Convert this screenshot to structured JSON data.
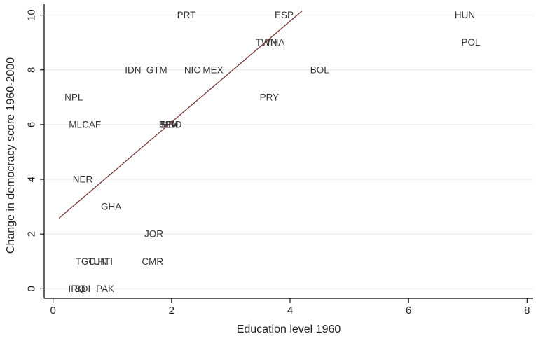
{
  "chart_data": {
    "type": "scatter",
    "xlabel": "Education level 1960",
    "ylabel": "Change in democracy score 1960-2000",
    "xlim": [
      -0.15,
      8.15
    ],
    "ylim": [
      -0.35,
      10.4
    ],
    "xticks": [
      0,
      2,
      4,
      6,
      8
    ],
    "yticks": [
      0,
      2,
      4,
      6,
      8,
      10
    ],
    "grid": "horizontal",
    "points": [
      {
        "label": "PRT",
        "x": 2.25,
        "y": 10
      },
      {
        "label": "ESP",
        "x": 3.9,
        "y": 10
      },
      {
        "label": "HUN",
        "x": 6.95,
        "y": 10
      },
      {
        "label": "TWN",
        "x": 3.6,
        "y": 9
      },
      {
        "label": "THA",
        "x": 3.75,
        "y": 9
      },
      {
        "label": "POL",
        "x": 7.05,
        "y": 9
      },
      {
        "label": "IDN",
        "x": 1.35,
        "y": 8
      },
      {
        "label": "GTM",
        "x": 1.75,
        "y": 8
      },
      {
        "label": "NIC",
        "x": 2.35,
        "y": 8
      },
      {
        "label": "MEX",
        "x": 2.7,
        "y": 8
      },
      {
        "label": "BOL",
        "x": 4.5,
        "y": 8
      },
      {
        "label": "NPL",
        "x": 0.35,
        "y": 7
      },
      {
        "label": "PRY",
        "x": 3.65,
        "y": 7
      },
      {
        "label": "MLI",
        "x": 0.4,
        "y": 6
      },
      {
        "label": "CAF",
        "x": 0.65,
        "y": 6
      },
      {
        "label": "BEN",
        "x": 1.95,
        "y": 6
      },
      {
        "label": "SLV",
        "x": 1.95,
        "y": 6
      },
      {
        "label": "HND",
        "x": 2.0,
        "y": 6
      },
      {
        "label": "NER",
        "x": 0.5,
        "y": 4
      },
      {
        "label": "GHA",
        "x": 0.98,
        "y": 3
      },
      {
        "label": "JOR",
        "x": 1.7,
        "y": 2
      },
      {
        "label": "TGO",
        "x": 0.55,
        "y": 1
      },
      {
        "label": "TUN",
        "x": 0.75,
        "y": 1
      },
      {
        "label": "HTI",
        "x": 0.88,
        "y": 1
      },
      {
        "label": "CMR",
        "x": 1.68,
        "y": 1
      },
      {
        "label": "IRQ",
        "x": 0.4,
        "y": 0
      },
      {
        "label": "BDI",
        "x": 0.5,
        "y": 0
      },
      {
        "label": "PAK",
        "x": 0.88,
        "y": 0
      }
    ],
    "fit_line": {
      "x": [
        0.1,
        4.2
      ],
      "y": [
        2.58,
        10.15
      ]
    }
  }
}
